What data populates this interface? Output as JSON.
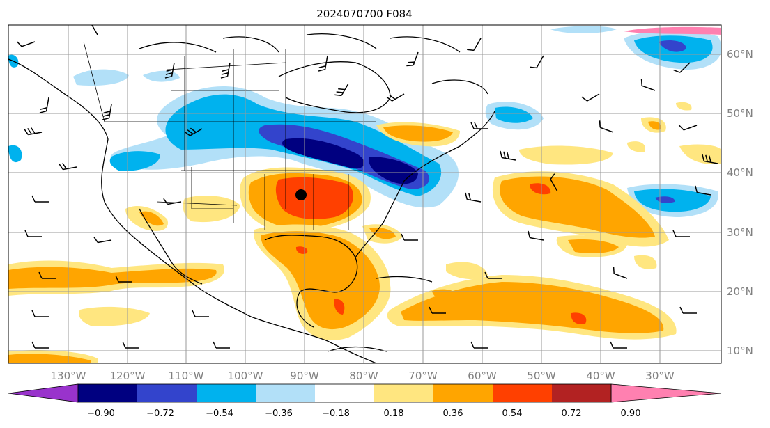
{
  "map": {
    "title": "2024070700 F084",
    "lon_labels": [
      "130°W",
      "120°W",
      "110°W",
      "100°W",
      "90°W",
      "80°W",
      "70°W",
      "60°W",
      "50°W",
      "40°W",
      "30°W"
    ],
    "lat_labels": [
      "60°N",
      "50°N",
      "40°N",
      "30°N",
      "20°N",
      "10°N"
    ],
    "colors": {
      "under": "#9933cc",
      "b1": "#000080",
      "b2": "#3344cc",
      "b3": "#00b2ee",
      "b4": "#b2e0f8",
      "b5": "#ffffff",
      "b6": "#ffe680",
      "b7": "#ffa500",
      "b8": "#ff4000",
      "b9": "#b22222",
      "over": "#ff80b0"
    }
  },
  "colorbar": {
    "labels": [
      "−0.90",
      "−0.72",
      "−0.54",
      "−0.36",
      "−0.18",
      "0.18",
      "0.36",
      "0.54",
      "0.72",
      "0.90"
    ],
    "colors": [
      "#000080",
      "#3344cc",
      "#00b2ee",
      "#b2e0f8",
      "#ffffff",
      "#ffe680",
      "#ffa500",
      "#ff4000",
      "#b22222"
    ],
    "under_color": "#9933cc",
    "over_color": "#ff80b0"
  }
}
